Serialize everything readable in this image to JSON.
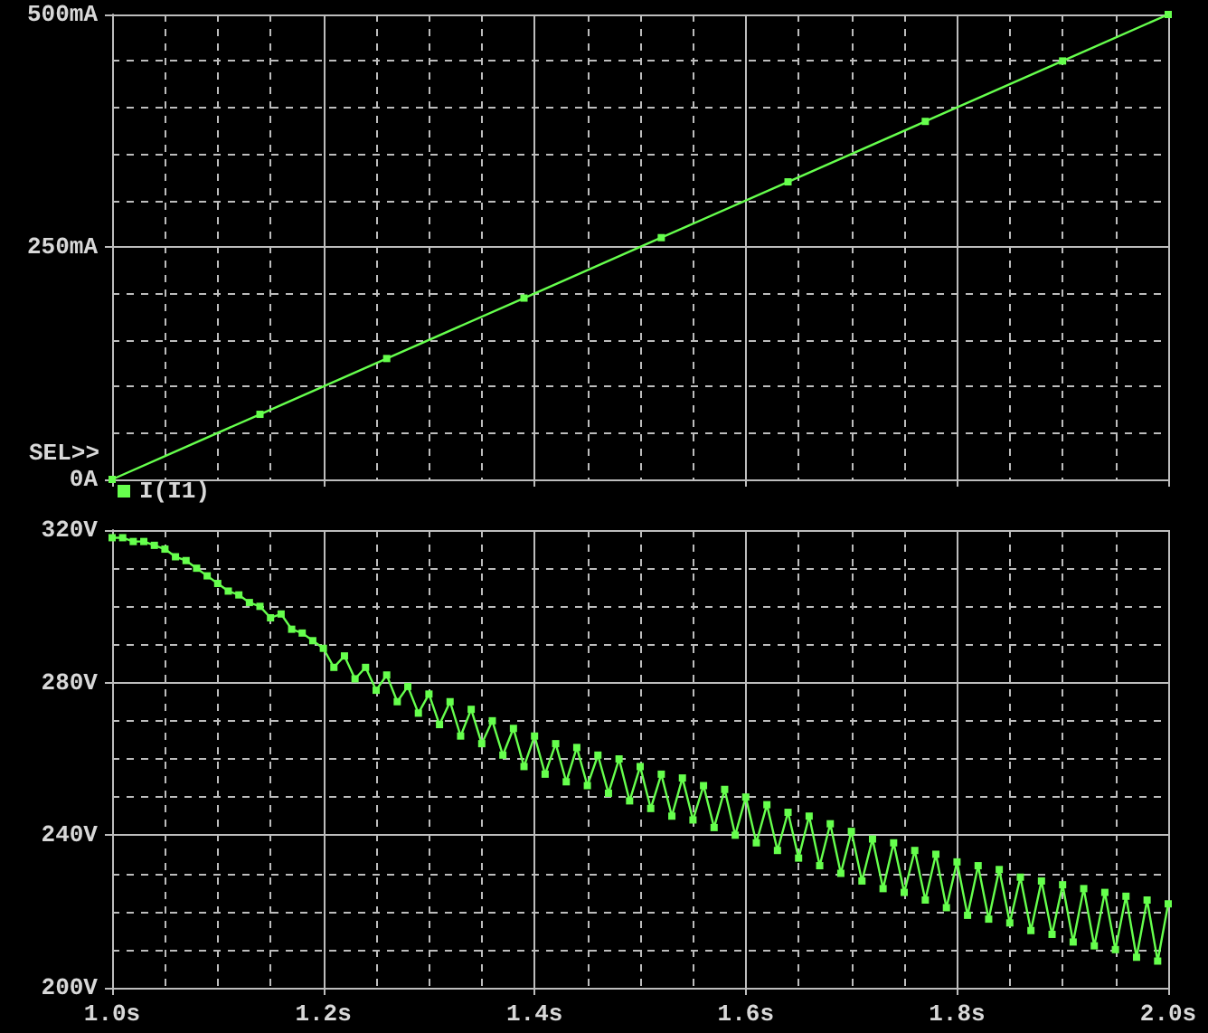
{
  "chart_data": [
    {
      "type": "line",
      "annotations": [
        "SEL>>"
      ],
      "x": [
        1.0,
        1.14,
        1.26,
        1.39,
        1.52,
        1.64,
        1.77,
        1.9,
        2.0
      ],
      "series": [
        {
          "name": "I(I1)",
          "color": "#66ff4d",
          "values": [
            0,
            70,
            130,
            195,
            260,
            320,
            385,
            450,
            500
          ]
        }
      ],
      "xlim": [
        1.0,
        2.0
      ],
      "xticks": [
        {
          "value": 1.0,
          "label": null
        },
        {
          "value": 1.05,
          "label": null
        },
        {
          "value": 1.1,
          "label": null
        },
        {
          "value": 1.15,
          "label": null
        },
        {
          "value": 1.2,
          "label": null
        },
        {
          "value": 1.25,
          "label": null
        },
        {
          "value": 1.3,
          "label": null
        },
        {
          "value": 1.35,
          "label": null
        },
        {
          "value": 1.4,
          "label": null
        },
        {
          "value": 1.45,
          "label": null
        },
        {
          "value": 1.5,
          "label": null
        },
        {
          "value": 1.55,
          "label": null
        },
        {
          "value": 1.6,
          "label": null
        },
        {
          "value": 1.65,
          "label": null
        },
        {
          "value": 1.7,
          "label": null
        },
        {
          "value": 1.75,
          "label": null
        },
        {
          "value": 1.8,
          "label": null
        },
        {
          "value": 1.85,
          "label": null
        },
        {
          "value": 1.9,
          "label": null
        },
        {
          "value": 1.95,
          "label": null
        },
        {
          "value": 2.0,
          "label": null
        }
      ],
      "ylim": [
        0,
        500
      ],
      "yticks": [
        {
          "value": 0,
          "label": "0A"
        },
        {
          "value": 50,
          "label": null
        },
        {
          "value": 100,
          "label": null
        },
        {
          "value": 150,
          "label": null
        },
        {
          "value": 200,
          "label": null
        },
        {
          "value": 250,
          "label": "250mA"
        },
        {
          "value": 300,
          "label": null
        },
        {
          "value": 350,
          "label": null
        },
        {
          "value": 400,
          "label": null
        },
        {
          "value": 450,
          "label": null
        },
        {
          "value": 500,
          "label": "500mA"
        }
      ],
      "tick_labels": "y",
      "grid": true,
      "legend": "bottom left",
      "marker": "square"
    },
    {
      "type": "line",
      "x": [
        1.0,
        1.01,
        1.02,
        1.03,
        1.04,
        1.05,
        1.06,
        1.07,
        1.08,
        1.09,
        1.1,
        1.11,
        1.12,
        1.13,
        1.14,
        1.15,
        1.16,
        1.17,
        1.18,
        1.19,
        1.2,
        1.21,
        1.22,
        1.23,
        1.24,
        1.25,
        1.26,
        1.27,
        1.28,
        1.29,
        1.3,
        1.31,
        1.32,
        1.33,
        1.34,
        1.35,
        1.36,
        1.37,
        1.38,
        1.39,
        1.4,
        1.41,
        1.42,
        1.43,
        1.44,
        1.45,
        1.46,
        1.47,
        1.48,
        1.49,
        1.5,
        1.51,
        1.52,
        1.53,
        1.54,
        1.55,
        1.56,
        1.57,
        1.58,
        1.59,
        1.6,
        1.61,
        1.62,
        1.63,
        1.64,
        1.65,
        1.66,
        1.67,
        1.68,
        1.69,
        1.7,
        1.71,
        1.72,
        1.73,
        1.74,
        1.75,
        1.76,
        1.77,
        1.78,
        1.79,
        1.8,
        1.81,
        1.82,
        1.83,
        1.84,
        1.85,
        1.86,
        1.87,
        1.88,
        1.89,
        1.9,
        1.91,
        1.92,
        1.93,
        1.94,
        1.95,
        1.96,
        1.97,
        1.98,
        1.99,
        2.0
      ],
      "series": [
        {
          "color": "#66ff4d",
          "values": [
            318,
            318,
            317,
            317,
            316,
            315,
            313,
            312,
            310,
            308,
            306,
            304,
            303,
            301,
            300,
            297,
            298,
            294,
            293,
            291,
            289,
            284,
            287,
            281,
            284,
            278,
            282,
            275,
            279,
            272,
            277,
            269,
            275,
            266,
            273,
            264,
            270,
            261,
            268,
            258,
            266,
            256,
            264,
            254,
            263,
            253,
            261,
            251,
            260,
            249,
            258,
            247,
            256,
            245,
            255,
            244,
            253,
            242,
            252,
            240,
            250,
            238,
            248,
            236,
            246,
            234,
            245,
            232,
            243,
            230,
            241,
            228,
            239,
            226,
            238,
            225,
            236,
            223,
            235,
            221,
            233,
            219,
            232,
            218,
            231,
            217,
            229,
            215,
            228,
            214,
            227,
            212,
            226,
            211,
            225,
            210,
            224,
            208,
            223,
            207,
            222
          ]
        }
      ],
      "xlim": [
        1.0,
        2.0
      ],
      "xticks": [
        {
          "value": 1.0,
          "label": "1.0s"
        },
        {
          "value": 1.05,
          "label": null
        },
        {
          "value": 1.1,
          "label": null
        },
        {
          "value": 1.15,
          "label": null
        },
        {
          "value": 1.2,
          "label": "1.2s"
        },
        {
          "value": 1.25,
          "label": null
        },
        {
          "value": 1.3,
          "label": null
        },
        {
          "value": 1.35,
          "label": null
        },
        {
          "value": 1.4,
          "label": "1.4s"
        },
        {
          "value": 1.45,
          "label": null
        },
        {
          "value": 1.5,
          "label": null
        },
        {
          "value": 1.55,
          "label": null
        },
        {
          "value": 1.6,
          "label": "1.6s"
        },
        {
          "value": 1.65,
          "label": null
        },
        {
          "value": 1.7,
          "label": null
        },
        {
          "value": 1.75,
          "label": null
        },
        {
          "value": 1.8,
          "label": "1.8s"
        },
        {
          "value": 1.85,
          "label": null
        },
        {
          "value": 1.9,
          "label": null
        },
        {
          "value": 1.95,
          "label": null
        },
        {
          "value": 2.0,
          "label": "2.0s"
        }
      ],
      "ylim": [
        200,
        320
      ],
      "yticks": [
        {
          "value": 200,
          "label": "200V"
        },
        {
          "value": 210,
          "label": null
        },
        {
          "value": 220,
          "label": null
        },
        {
          "value": 230,
          "label": null
        },
        {
          "value": 240,
          "label": "240V"
        },
        {
          "value": 250,
          "label": null
        },
        {
          "value": 260,
          "label": null
        },
        {
          "value": 270,
          "label": null
        },
        {
          "value": 280,
          "label": "280V"
        },
        {
          "value": 290,
          "label": null
        },
        {
          "value": 300,
          "label": null
        },
        {
          "value": 310,
          "label": null
        },
        {
          "value": 320,
          "label": "320V"
        }
      ],
      "grid": true,
      "marker": "square"
    }
  ]
}
